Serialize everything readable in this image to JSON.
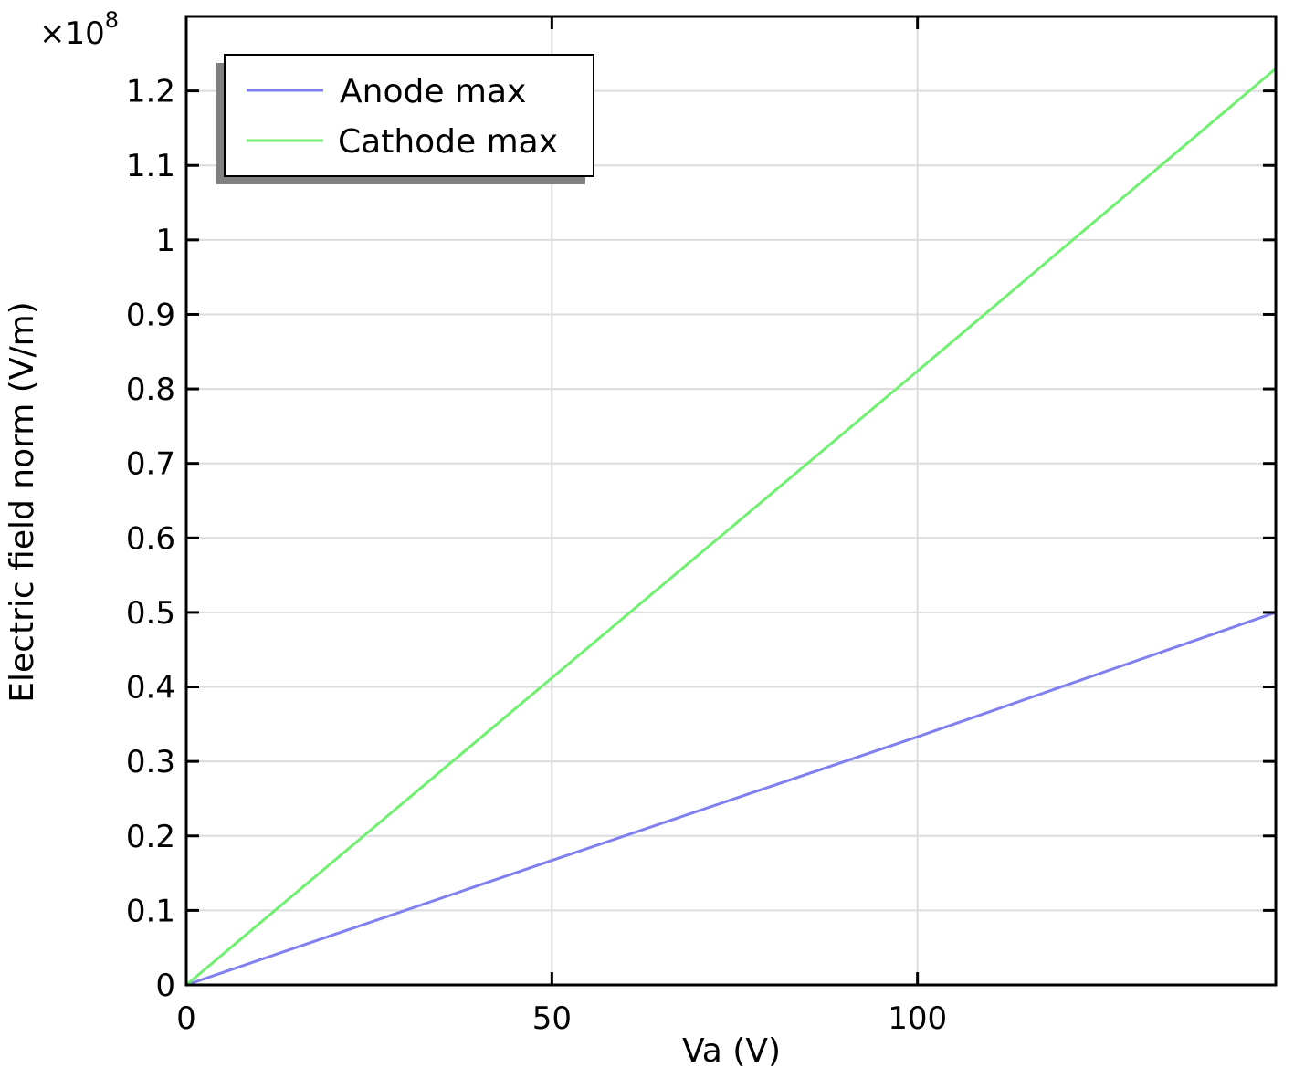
{
  "chart_data": {
    "type": "line",
    "title": "",
    "xlabel": "Va (V)",
    "ylabel": "Electric field norm (V/m)",
    "y_multiplier_label": "×10",
    "y_multiplier_exponent": "8",
    "xlim": [
      0,
      149
    ],
    "ylim": [
      0,
      1.3
    ],
    "x_ticks": [
      0,
      50,
      100
    ],
    "x_tick_labels": [
      "0",
      "50",
      "100"
    ],
    "y_ticks": [
      0,
      0.1,
      0.2,
      0.3,
      0.4,
      0.5,
      0.6,
      0.7,
      0.8,
      0.9,
      1,
      1.1,
      1.2
    ],
    "y_tick_labels": [
      "0",
      "0.1",
      "0.2",
      "0.3",
      "0.4",
      "0.5",
      "0.6",
      "0.7",
      "0.8",
      "0.9",
      "1",
      "1.1",
      "1.2"
    ],
    "grid": true,
    "legend_position": "top-left",
    "series": [
      {
        "name": "Anode max",
        "color": "#8080f0",
        "x": [
          0,
          50,
          100,
          149
        ],
        "y": [
          0,
          0.167,
          0.333,
          0.5
        ]
      },
      {
        "name": "Cathode max",
        "color": "#70f070",
        "x": [
          0,
          50,
          100,
          149
        ],
        "y": [
          0,
          0.412,
          0.824,
          1.23
        ]
      }
    ]
  }
}
